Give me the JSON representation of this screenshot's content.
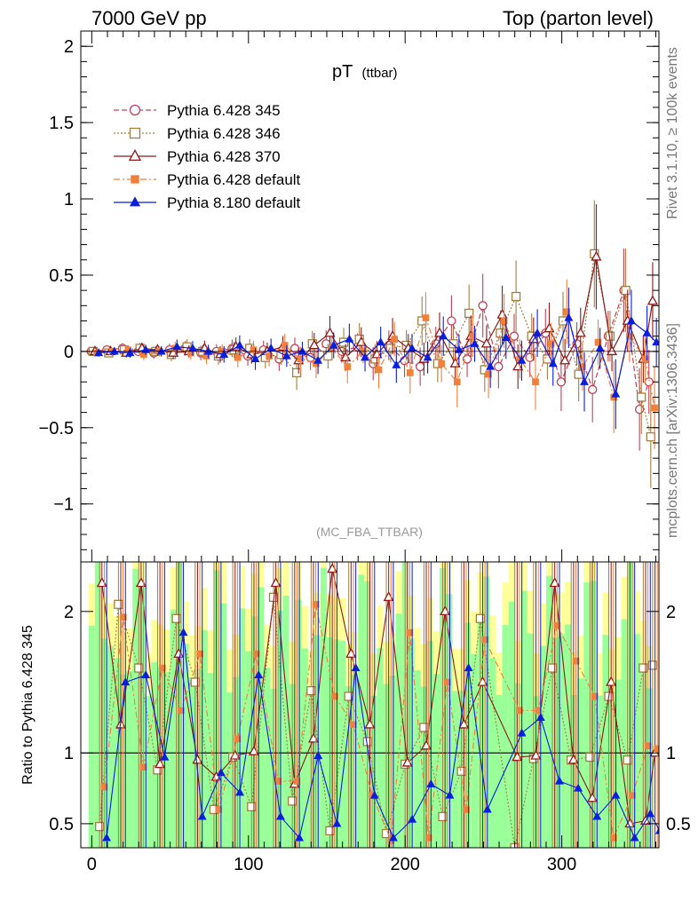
{
  "header": {
    "left": "7000 GeV pp",
    "right": "Top (parton level)"
  },
  "side_labels": {
    "rivet": "Rivet 3.1.10, ≥ 100k events",
    "mcplots": "mcplots.cern.ch [arXiv:1306.3436]"
  },
  "plot_title": {
    "main": "pT",
    "sub": "(ttbar)"
  },
  "analysis_tag": "(MC_FBA_TTBAR)",
  "ratio_ylabel": "Ratio to Pythia 6.428 345",
  "chart_data": [
    {
      "type": "scatter",
      "panel": "main",
      "title": "pT (ttbar)",
      "xlabel": "",
      "ylabel": "",
      "xlim": [
        -7,
        362
      ],
      "ylim": [
        -1.38,
        2.1
      ],
      "yticks": [
        -1,
        -0.5,
        0,
        0.5,
        1,
        1.5,
        2
      ],
      "ytick_labels": [
        "−1",
        "−0.5",
        "0",
        "0.5",
        "1",
        "1.5",
        "2"
      ],
      "xticks": [
        0,
        100,
        200,
        300
      ],
      "legend_position": "top-left",
      "x": [
        2,
        12,
        22,
        32,
        42,
        52,
        62,
        72,
        82,
        92,
        102,
        112,
        122,
        132,
        142,
        152,
        162,
        172,
        182,
        192,
        202,
        212,
        222,
        232,
        242,
        252,
        262,
        272,
        282,
        292,
        302,
        312,
        322,
        332,
        342,
        352,
        358
      ],
      "series": [
        {
          "name": "Pythia 6.428 345",
          "color": "#c0405a",
          "marker": "circle-open",
          "line": "dashed",
          "values": [
            0.0,
            0.01,
            0.02,
            0.0,
            -0.01,
            0.01,
            0.02,
            -0.01,
            0.0,
            0.02,
            -0.03,
            0.01,
            -0.05,
            0.02,
            -0.04,
            0.05,
            0.0,
            0.03,
            -0.08,
            0.04,
            -0.06,
            -0.1,
            0.05,
            0.2,
            -0.05,
            0.3,
            -0.1,
            0.1,
            -0.04,
            0.12,
            -0.2,
            0.05,
            -0.25,
            0.1,
            0.4,
            -0.38,
            -0.2
          ]
        },
        {
          "name": "Pythia 6.428 346",
          "color": "#a08040",
          "marker": "square-open",
          "line": "dotted",
          "values": [
            0.0,
            -0.01,
            0.01,
            0.02,
            0.0,
            -0.02,
            0.03,
            0.0,
            -0.03,
            0.01,
            0.02,
            -0.04,
            -0.02,
            -0.14,
            0.05,
            -0.03,
            0.06,
            0.08,
            -0.05,
            0.02,
            0.04,
            0.2,
            -0.08,
            0.05,
            0.25,
            -0.12,
            0.12,
            0.36,
            0.1,
            -0.05,
            0.2,
            -0.15,
            0.64,
            0.1,
            0.4,
            -0.3,
            -0.56
          ]
        },
        {
          "name": "Pythia 6.428 370",
          "color": "#8b1a1a",
          "marker": "triangle-open",
          "line": "solid",
          "values": [
            0.0,
            0.0,
            -0.01,
            0.02,
            0.01,
            -0.01,
            0.0,
            0.02,
            -0.02,
            0.03,
            -0.02,
            0.0,
            0.03,
            -0.06,
            0.04,
            0.12,
            -0.04,
            0.06,
            -0.02,
            0.1,
            0.02,
            -0.05,
            0.12,
            -0.08,
            0.1,
            0.05,
            0.24,
            -0.1,
            0.08,
            0.15,
            -0.06,
            0.12,
            0.62,
            0.0,
            0.2,
            -0.05,
            0.33
          ]
        },
        {
          "name": "Pythia 6.428 default",
          "color": "#f0803a",
          "marker": "square-filled",
          "line": "dashdot",
          "values": [
            -0.01,
            0.0,
            0.01,
            -0.02,
            0.0,
            0.02,
            -0.01,
            -0.03,
            0.0,
            -0.04,
            0.01,
            -0.03,
            0.04,
            -0.05,
            -0.08,
            0.02,
            -0.1,
            0.0,
            -0.12,
            0.08,
            -0.14,
            0.22,
            -0.08,
            -0.2,
            0.1,
            -0.15,
            0.2,
            -0.05,
            -0.2,
            0.05,
            0.26,
            -0.1,
            0.06,
            -0.3,
            0.1,
            -0.05,
            -0.37
          ]
        },
        {
          "name": "Pythia 8.180 default",
          "color": "#0a1ee0",
          "marker": "triangle-filled",
          "line": "solid",
          "values": [
            -0.01,
            0.0,
            -0.01,
            0.01,
            0.0,
            0.03,
            0.02,
            0.0,
            -0.02,
            0.04,
            -0.05,
            0.02,
            -0.03,
            0.0,
            -0.06,
            0.04,
            0.08,
            -0.04,
            0.06,
            -0.09,
            0.02,
            -0.04,
            0.1,
            0.01,
            0.05,
            -0.1,
            0.09,
            -0.06,
            0.12,
            -0.08,
            0.22,
            -0.2,
            0.02,
            -0.28,
            0.2,
            0.12,
            0.06
          ]
        }
      ]
    },
    {
      "type": "scatter",
      "panel": "ratio",
      "ylabel": "Ratio to Pythia 6.428 345",
      "xlim": [
        -7,
        362
      ],
      "ylim": [
        0.33,
        2.35
      ],
      "yticks": [
        0.5,
        1,
        2
      ],
      "ytick_labels": [
        "0.5",
        "1",
        "2"
      ],
      "xticks": [
        0,
        100,
        200,
        300
      ],
      "xtick_labels": [
        "0",
        "100",
        "200",
        "300"
      ],
      "reference_line": 1,
      "x": [
        5,
        17,
        30,
        42,
        54,
        66,
        78,
        90,
        102,
        116,
        128,
        140,
        152,
        164,
        176,
        188,
        200,
        212,
        224,
        236,
        248,
        270,
        282,
        294,
        306,
        318,
        330,
        342,
        352,
        358
      ],
      "series": [
        {
          "name": "Pythia 6.428 346",
          "color": "#a08040",
          "marker": "square-open",
          "values": [
            0.48,
            2.05,
            1.6,
            0.88,
            1.95,
            1.5,
            0.6,
            0.97,
            0.62,
            2.1,
            0.66,
            1.44,
            0.45,
            1.4,
            1.08,
            0.43,
            0.92,
            1.18,
            0.55,
            0.87,
            1.95,
            0.33,
            0.96,
            1.6,
            0.95,
            0.97,
            1.4,
            0.95,
            1.6,
            1.62
          ]
        },
        {
          "name": "Pythia 6.428 370",
          "color": "#8b1a1a",
          "marker": "triangle-open",
          "values": [
            2.2,
            1.2,
            2.2,
            0.92,
            1.7,
            0.95,
            0.83,
            0.98,
            1.01,
            2.2,
            0.78,
            1.1,
            2.3,
            1.7,
            1.2,
            2.1,
            0.93,
            1.05,
            2.0,
            1.2,
            1.5,
            0.97,
            0.98,
            2.2,
            0.95,
            0.68,
            1.5,
            0.5,
            0.52,
            1.0
          ]
        },
        {
          "name": "Pythia 6.428 default",
          "color": "#f0803a",
          "marker": "square-filled",
          "values": [
            0.76,
            1.96,
            0.9,
            1.6,
            1.3,
            1.7,
            0.6,
            1.1,
            1.7,
            0.8,
            0.8,
            2.05,
            1.4,
            1.2,
            0.7,
            0.38,
            1.85,
            0.4,
            1.5,
            0.6,
            1.8,
            1.3,
            1.3,
            1.9,
            1.65,
            1.4,
            0.4,
            0.7,
            1.05,
            1.03
          ]
        },
        {
          "name": "Pythia 8.180 default",
          "color": "#0a1ee0",
          "marker": "triangle-filled",
          "values": [
            0.4,
            1.5,
            1.55,
            0.97,
            1.85,
            0.55,
            0.86,
            0.72,
            1.55,
            0.55,
            0.4,
            0.98,
            0.5,
            1.6,
            0.7,
            0.4,
            0.53,
            0.78,
            0.7,
            1.6,
            0.6,
            1.14,
            1.25,
            0.8,
            0.75,
            0.55,
            0.7,
            0.4,
            0.57,
            0.45
          ]
        }
      ]
    }
  ]
}
